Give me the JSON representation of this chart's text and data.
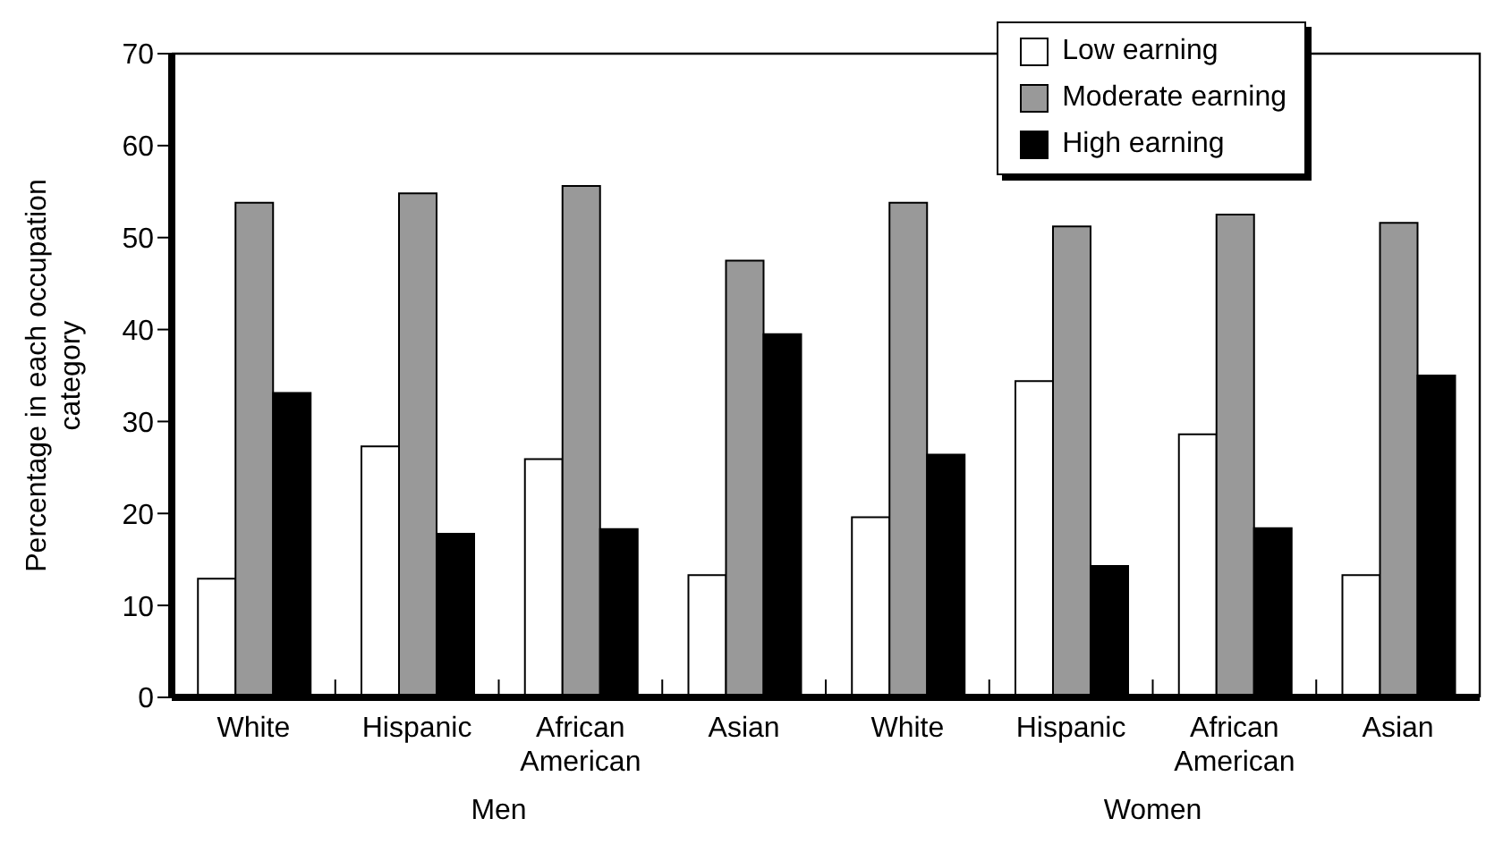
{
  "chart_data": {
    "type": "bar",
    "ylabel": "Percentage in each occupation category",
    "categories": [
      "White",
      "Hispanic",
      "African American",
      "Asian",
      "White",
      "Hispanic",
      "African American",
      "Asian"
    ],
    "series": [
      {
        "name": "Low earning",
        "color": "#ffffff",
        "values": [
          12.9,
          27.3,
          25.9,
          13.3,
          19.6,
          34.4,
          28.6,
          13.3
        ]
      },
      {
        "name": "Moderate earning",
        "color": "#999999",
        "values": [
          53.8,
          54.8,
          55.6,
          47.5,
          53.8,
          51.2,
          52.5,
          51.6
        ]
      },
      {
        "name": "High earning",
        "color": "#000000",
        "values": [
          33.1,
          17.8,
          18.3,
          39.5,
          26.4,
          14.3,
          18.4,
          35.0
        ]
      }
    ],
    "ylim": [
      0,
      70
    ],
    "yticks": [
      0,
      10,
      20,
      30,
      40,
      50,
      60,
      70
    ],
    "grid": false,
    "legend": "top right",
    "annotations": [
      "Men",
      "Women"
    ]
  }
}
